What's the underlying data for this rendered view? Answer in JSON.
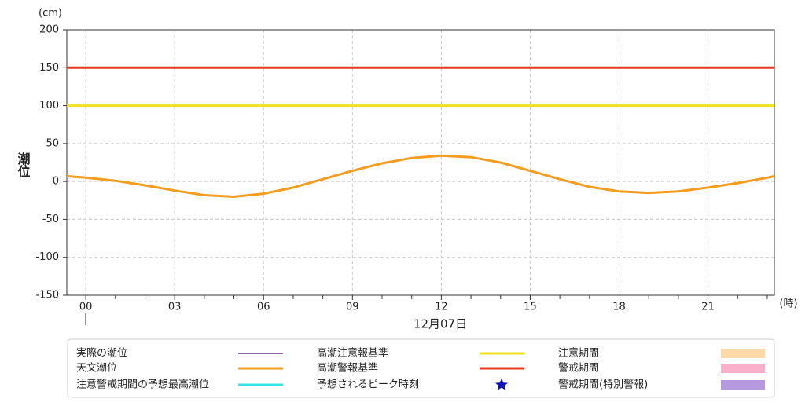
{
  "chart_data": {
    "type": "line",
    "y_label": "潮位",
    "y_unit": "(cm)",
    "x_unit": "(時)",
    "date": "12月07日",
    "xlim": [
      -0.64,
      23.24
    ],
    "ylim": [
      -150,
      200
    ],
    "yticks": [
      -150,
      -100,
      -50,
      0,
      50,
      100,
      150,
      200
    ],
    "xticks": [
      {
        "value": 0,
        "label": "00"
      },
      {
        "value": 3,
        "label": "03"
      },
      {
        "value": 6,
        "label": "06"
      },
      {
        "value": 9,
        "label": "09"
      },
      {
        "value": 12,
        "label": "12"
      },
      {
        "value": 15,
        "label": "15"
      },
      {
        "value": 18,
        "label": "18"
      },
      {
        "value": 21,
        "label": "21"
      }
    ],
    "xminorticks": [
      1,
      2,
      4,
      5,
      7,
      8,
      10,
      11,
      13,
      14,
      16,
      17,
      19,
      20,
      22,
      23
    ],
    "grid": true,
    "series": [
      {
        "name": "実際の潮位",
        "color": "#8e5fa8",
        "marker": "line"
      },
      {
        "name": "天文潮位",
        "color": "#f39c1e",
        "marker": "line",
        "x": [
          -0.64,
          0,
          1,
          2,
          3,
          4,
          5,
          6,
          7,
          8,
          9,
          10,
          11,
          12,
          13,
          14,
          15,
          16,
          17,
          18,
          19,
          20,
          21,
          22,
          23,
          23.24
        ],
        "values": [
          7,
          5,
          1,
          -5,
          -12,
          -18,
          -20,
          -16,
          -8,
          3,
          14,
          24,
          31,
          34,
          32,
          25,
          14,
          3,
          -7,
          -13,
          -15,
          -13,
          -8,
          -2,
          5,
          7
        ]
      },
      {
        "name": "注意警戒期間の予想最高潮位",
        "color": "#33e6e6",
        "marker": "line"
      },
      {
        "name": "高潮注意報基準",
        "color": "#f0e020",
        "marker": "line",
        "value": 100
      },
      {
        "name": "高潮警報基準",
        "color": "#e8391c",
        "marker": "line",
        "value": 150
      },
      {
        "name": "予想されるピーク時刻",
        "color": "#1010c0",
        "marker": "star"
      },
      {
        "name": "注意期間",
        "color": "#fdd9a8",
        "marker": "box"
      },
      {
        "name": "警戒期間",
        "color": "#f9b0c8",
        "marker": "box"
      },
      {
        "name": "警戒期間(特別警報)",
        "color": "#b59ae0",
        "marker": "box"
      }
    ]
  }
}
